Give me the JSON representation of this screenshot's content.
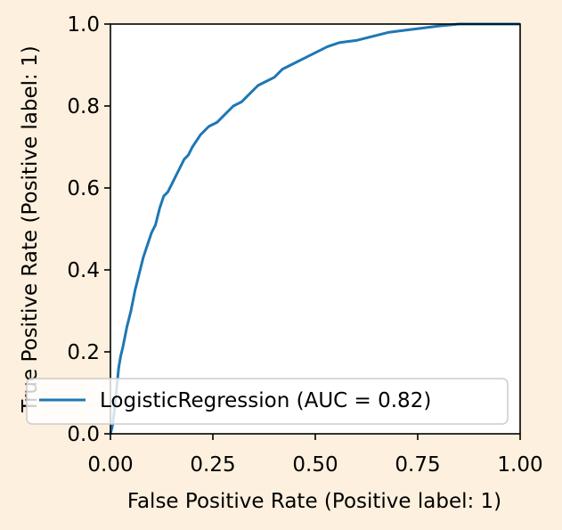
{
  "chart_data": {
    "type": "line",
    "title": "",
    "xlabel": "False Positive Rate (Positive label: 1)",
    "ylabel": "True Positive Rate (Positive label: 1)",
    "xlim": [
      0.0,
      1.0
    ],
    "ylim": [
      0.0,
      1.0
    ],
    "xticks": [
      0.0,
      0.25,
      0.5,
      0.75,
      1.0
    ],
    "xtick_labels": [
      "0.00",
      "0.25",
      "0.50",
      "0.75",
      "1.00"
    ],
    "yticks": [
      0.0,
      0.2,
      0.4,
      0.6,
      0.8,
      1.0
    ],
    "ytick_labels": [
      "0.0",
      "0.2",
      "0.4",
      "0.6",
      "0.8",
      "1.0"
    ],
    "grid": false,
    "legend_placement": "lower-left",
    "series": [
      {
        "name": "LogisticRegression (AUC = 0.82)",
        "color": "#1f77b4",
        "x": [
          0.0,
          0.005,
          0.01,
          0.015,
          0.02,
          0.025,
          0.03,
          0.04,
          0.05,
          0.06,
          0.07,
          0.08,
          0.09,
          0.1,
          0.11,
          0.12,
          0.13,
          0.14,
          0.15,
          0.16,
          0.17,
          0.18,
          0.19,
          0.2,
          0.22,
          0.24,
          0.26,
          0.28,
          0.3,
          0.32,
          0.34,
          0.36,
          0.38,
          0.4,
          0.42,
          0.44,
          0.46,
          0.48,
          0.5,
          0.53,
          0.56,
          0.6,
          0.64,
          0.68,
          0.72,
          0.76,
          0.8,
          0.85,
          0.9,
          0.95,
          1.0
        ],
        "y": [
          0.0,
          0.02,
          0.06,
          0.11,
          0.16,
          0.19,
          0.21,
          0.26,
          0.3,
          0.35,
          0.39,
          0.43,
          0.46,
          0.49,
          0.51,
          0.55,
          0.58,
          0.59,
          0.61,
          0.63,
          0.65,
          0.67,
          0.68,
          0.7,
          0.73,
          0.75,
          0.76,
          0.78,
          0.8,
          0.81,
          0.83,
          0.85,
          0.86,
          0.87,
          0.89,
          0.9,
          0.91,
          0.92,
          0.93,
          0.945,
          0.955,
          0.96,
          0.97,
          0.98,
          0.985,
          0.99,
          0.995,
          1.0,
          1.0,
          1.0,
          1.0
        ]
      }
    ]
  }
}
